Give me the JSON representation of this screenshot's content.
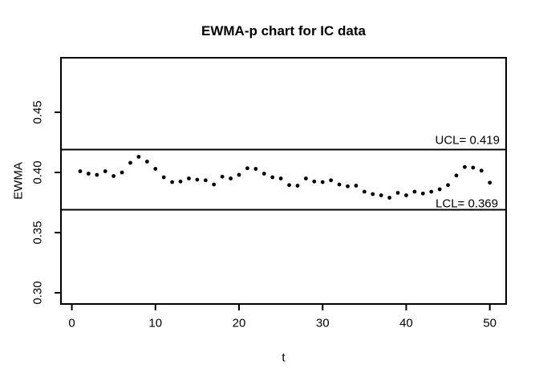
{
  "chart_data": {
    "type": "scatter",
    "title": "EWMA-p chart for IC data",
    "xlabel": "t",
    "ylabel": "EWMA",
    "x": [
      1,
      2,
      3,
      4,
      5,
      6,
      7,
      8,
      9,
      10,
      11,
      12,
      13,
      14,
      15,
      16,
      17,
      18,
      19,
      20,
      21,
      22,
      23,
      24,
      25,
      26,
      27,
      28,
      29,
      30,
      31,
      32,
      33,
      34,
      35,
      36,
      37,
      38,
      39,
      40,
      41,
      42,
      43,
      44,
      45,
      46,
      47,
      48,
      49,
      50
    ],
    "values": [
      0.401,
      0.399,
      0.398,
      0.401,
      0.397,
      0.4,
      0.408,
      0.413,
      0.409,
      0.403,
      0.396,
      0.392,
      0.3925,
      0.395,
      0.394,
      0.3935,
      0.39,
      0.3965,
      0.395,
      0.398,
      0.4035,
      0.403,
      0.399,
      0.396,
      0.395,
      0.3895,
      0.389,
      0.395,
      0.3925,
      0.392,
      0.3935,
      0.39,
      0.3885,
      0.389,
      0.384,
      0.382,
      0.381,
      0.379,
      0.383,
      0.381,
      0.384,
      0.3825,
      0.384,
      0.386,
      0.3895,
      0.3975,
      0.4045,
      0.404,
      0.4015,
      0.3915
    ],
    "xlim": [
      -1.3,
      51.95
    ],
    "ylim": [
      0.2907,
      0.4953
    ],
    "xticks": [
      0,
      10,
      20,
      30,
      40,
      50
    ],
    "xtick_labels": [
      "0",
      "10",
      "20",
      "30",
      "40",
      "50"
    ],
    "yticks": [
      0.3,
      0.35,
      0.4,
      0.45
    ],
    "ytick_labels": [
      "0.30",
      "0.35",
      "0.40",
      "0.45"
    ],
    "ucl": {
      "value": 0.419,
      "label": "UCL= 0.419"
    },
    "lcl": {
      "value": 0.369,
      "label": "LCL= 0.369"
    },
    "point_color": "#000000",
    "line_color": "#000000",
    "background_color": "#ffffff",
    "grid": false,
    "legend": null
  }
}
